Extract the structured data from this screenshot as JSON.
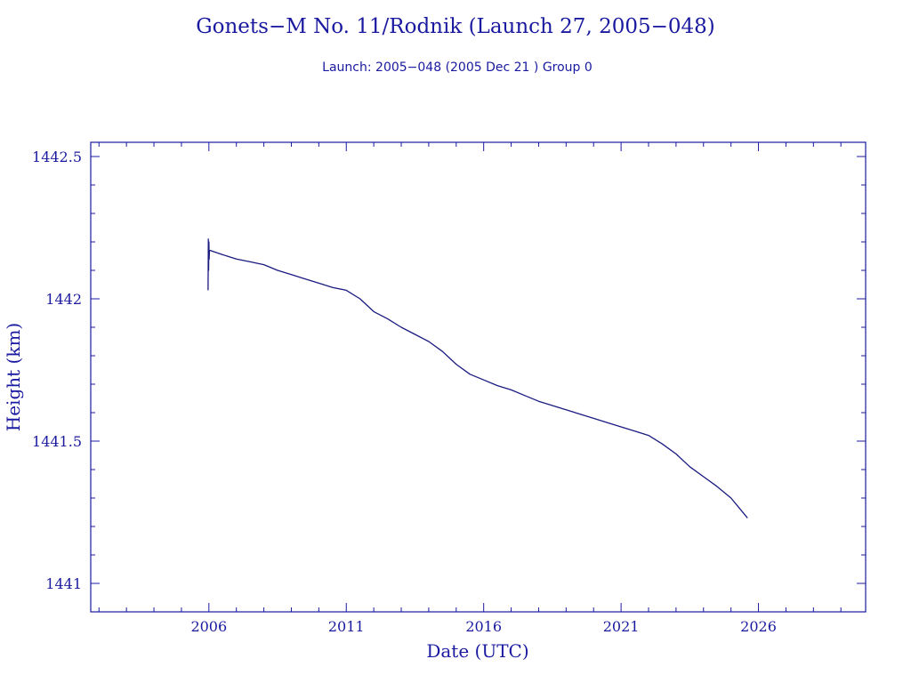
{
  "chart_data": {
    "type": "line",
    "title": "Gonets−M No. 11/Rodnik (Launch 27, 2005−048)",
    "subtitle": "Launch: 2005−048  (2005 Dec 21 )  Group 0",
    "xlabel": "Date (UTC)",
    "ylabel": "Height (km)",
    "xlim": [
      2001.7,
      2029.9
    ],
    "ylim": [
      1440.9,
      1442.55
    ],
    "x_ticks": [
      2006,
      2011,
      2016,
      2021,
      2026
    ],
    "x_tick_labels": [
      "2006",
      "2011",
      "2016",
      "2021",
      "2026"
    ],
    "y_ticks": [
      1441,
      1441.5,
      1442,
      1442.5
    ],
    "y_tick_labels": [
      "1441",
      "1441.5",
      "1442",
      "1442.5"
    ],
    "grid": false,
    "colors": {
      "line": "#1a1a80",
      "axes": "#1a1aa0",
      "text": "#1a1aa0"
    },
    "series": [
      {
        "x": [
          2005.97,
          2005.98,
          2005.99,
          2006.0,
          2006.01,
          2006.02,
          2006.05,
          2006.2,
          2006.5,
          2007.0,
          2007.5,
          2008.0,
          2008.5,
          2009.0,
          2009.5,
          2010.0,
          2010.5,
          2011.0,
          2011.5,
          2012.0,
          2012.5,
          2013.0,
          2013.5,
          2014.0,
          2014.5,
          2015.0,
          2015.5,
          2016.0,
          2016.5,
          2017.0,
          2017.5,
          2018.0,
          2018.5,
          2019.0,
          2019.5,
          2020.0,
          2020.5,
          2021.0,
          2021.5,
          2022.0,
          2022.5,
          2023.0,
          2023.5,
          2024.0,
          2024.5,
          2025.0,
          2025.3,
          2025.6
        ],
        "y": [
          1442.03,
          1442.21,
          1442.1,
          1442.2,
          1442.14,
          1442.17,
          1442.17,
          1442.165,
          1442.155,
          1442.14,
          1442.13,
          1442.12,
          1442.1,
          1442.085,
          1442.07,
          1442.055,
          1442.04,
          1442.03,
          1442.0,
          1441.955,
          1441.93,
          1441.9,
          1441.875,
          1441.85,
          1441.815,
          1441.77,
          1441.735,
          1441.715,
          1441.695,
          1441.68,
          1441.66,
          1441.64,
          1441.625,
          1441.61,
          1441.595,
          1441.58,
          1441.565,
          1441.55,
          1441.535,
          1441.52,
          1441.49,
          1441.455,
          1441.41,
          1441.375,
          1441.34,
          1441.3,
          1441.265,
          1441.23
        ]
      }
    ]
  }
}
